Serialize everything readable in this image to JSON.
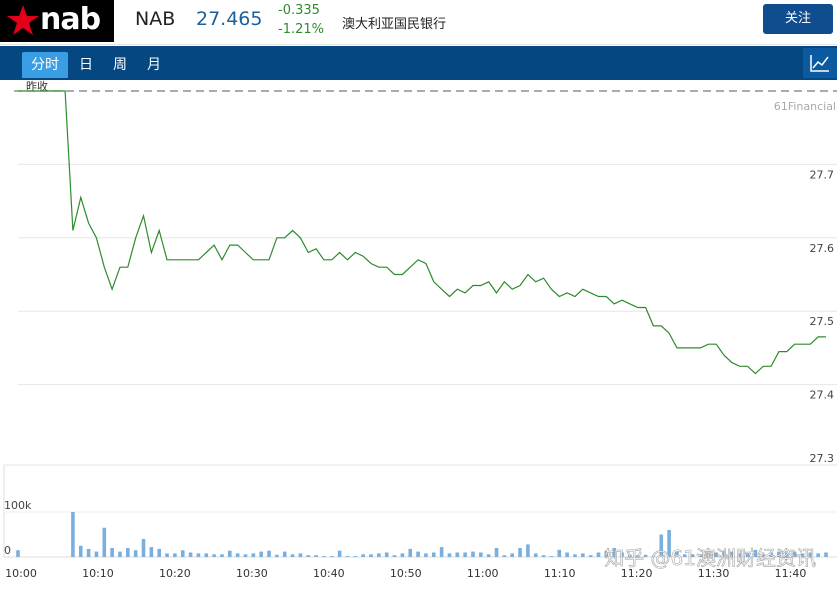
{
  "header": {
    "logo_text": "nab",
    "ticker": "NAB",
    "price": "27.465",
    "change": "-0.335",
    "change_pct": "-1.21%",
    "company_name": "澳大利亚国民银行",
    "follow_label": "关注"
  },
  "tabs": [
    {
      "label": "分时",
      "active": true
    },
    {
      "label": "日",
      "active": false
    },
    {
      "label": "周",
      "active": false
    },
    {
      "label": "月",
      "active": false
    }
  ],
  "colors": {
    "nav": "#054780",
    "tab_active": "#3a9ee4",
    "line": "#2e8b2e",
    "volume": "#7aaedc"
  },
  "chart_data": {
    "type": "line",
    "prev_close_label": "昨收",
    "watermark": "61Financial",
    "overlay_text": "知乎 @61澳洲财经资讯",
    "price_ylim": [
      27.3,
      27.8
    ],
    "price_ticks": [
      "27.7",
      "27.6",
      "27.5",
      "27.4",
      "27.3"
    ],
    "volume_ticks": [
      "100k",
      "0"
    ],
    "x_ticks": [
      "10:00",
      "10:10",
      "10:20",
      "10:30",
      "10:40",
      "10:50",
      "11:00",
      "11:10",
      "11:20",
      "11:30",
      "11:40"
    ],
    "prev_close": 27.8,
    "price": [
      27.8,
      27.8,
      27.8,
      27.8,
      27.8,
      27.8,
      27.8,
      27.61,
      27.655,
      27.62,
      27.6,
      27.56,
      27.53,
      27.56,
      27.56,
      27.6,
      27.63,
      27.58,
      27.61,
      27.57,
      27.57,
      27.57,
      27.57,
      27.57,
      27.58,
      27.59,
      27.57,
      27.59,
      27.59,
      27.58,
      27.57,
      27.57,
      27.57,
      27.6,
      27.6,
      27.61,
      27.6,
      27.58,
      27.585,
      27.57,
      27.57,
      27.58,
      27.57,
      27.58,
      27.575,
      27.565,
      27.56,
      27.56,
      27.55,
      27.55,
      27.56,
      27.57,
      27.565,
      27.54,
      27.53,
      27.52,
      27.53,
      27.525,
      27.535,
      27.535,
      27.54,
      27.525,
      27.54,
      27.53,
      27.535,
      27.55,
      27.54,
      27.545,
      27.53,
      27.52,
      27.525,
      27.52,
      27.53,
      27.525,
      27.52,
      27.52,
      27.51,
      27.515,
      27.51,
      27.505,
      27.505,
      27.48,
      27.48,
      27.47,
      27.45,
      27.45,
      27.45,
      27.45,
      27.455,
      27.455,
      27.44,
      27.43,
      27.425,
      27.425,
      27.415,
      27.425,
      27.425,
      27.445,
      27.445,
      27.455,
      27.455,
      27.455,
      27.465,
      27.465
    ],
    "volume": [
      15,
      0,
      0,
      0,
      0,
      0,
      0,
      100,
      25,
      18,
      12,
      65,
      20,
      12,
      20,
      15,
      40,
      22,
      18,
      8,
      8,
      15,
      10,
      8,
      8,
      6,
      6,
      14,
      8,
      6,
      8,
      12,
      14,
      5,
      12,
      6,
      8,
      4,
      4,
      2,
      2,
      14,
      2,
      2,
      6,
      6,
      8,
      10,
      4,
      8,
      18,
      12,
      8,
      10,
      22,
      8,
      10,
      10,
      12,
      10,
      6,
      20,
      4,
      8,
      20,
      28,
      8,
      4,
      2,
      16,
      10,
      6,
      8,
      4,
      10,
      14,
      20,
      10,
      5,
      4,
      5,
      2,
      50,
      60,
      12,
      6,
      6,
      6,
      8,
      10,
      14,
      12,
      8,
      8,
      16,
      6,
      10,
      12,
      10,
      12,
      8,
      10,
      8,
      10
    ]
  }
}
